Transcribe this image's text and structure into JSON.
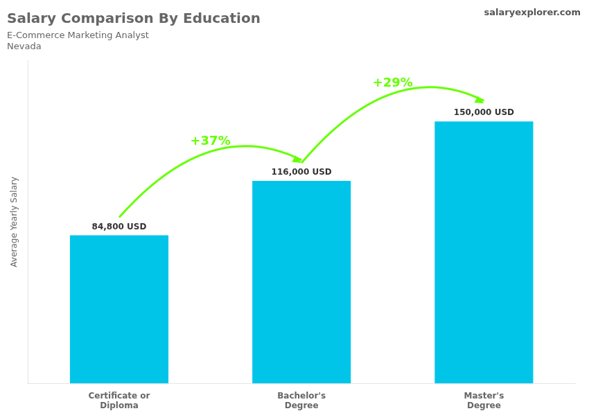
{
  "chart_data": {
    "type": "bar",
    "title": "Salary Comparison By Education",
    "subtitle": [
      "E-Commerce Marketing Analyst",
      "Nevada"
    ],
    "ylabel": "Average Yearly Salary",
    "categories": [
      "Certificate or\nDiploma",
      "Bachelor's\nDegree",
      "Master's\nDegree"
    ],
    "values": [
      84800,
      116000,
      150000
    ],
    "value_labels": [
      "84,800 USD",
      "116,000 USD",
      "150,000 USD"
    ],
    "data_labels": true,
    "color": "#00C5E8",
    "ylim": [
      0,
      185000
    ],
    "grid": false,
    "tick_labels": "x",
    "annotations": [
      {
        "text": "+37%",
        "from": "Certificate or\nDiploma",
        "to": "Bachelor's\nDegree",
        "color": "#66FF00"
      },
      {
        "text": "+29%",
        "from": "Bachelor's\nDegree",
        "to": "Master's\nDegree",
        "color": "#66FF00"
      },
      {
        "text": "salaryexplorer.com"
      }
    ]
  }
}
